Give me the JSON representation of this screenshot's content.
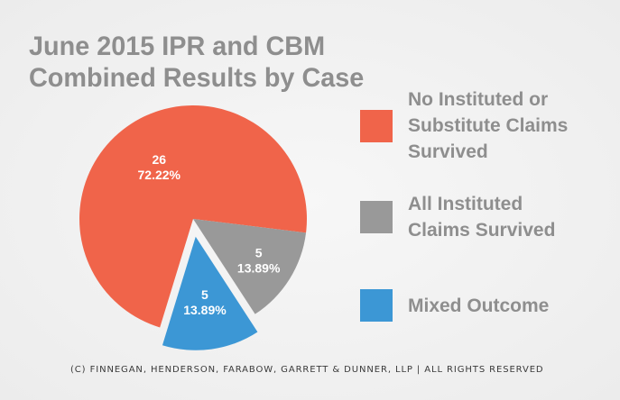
{
  "chart_data": {
    "type": "pie",
    "title": [
      "June 2015 IPR and CBM",
      "Combined Results by Case"
    ],
    "slices": [
      {
        "label": "No Instituted or Substitute Claims Survived",
        "label_lines": [
          "No Instituted or",
          "Substitute Claims",
          "Survived"
        ],
        "value": 26,
        "percent": "72.22%",
        "color": "#f0644a",
        "exploded": false
      },
      {
        "label": "All Instituted Claims Survived",
        "label_lines": [
          "All Instituted",
          "Claims Survived"
        ],
        "value": 5,
        "percent": "13.89%",
        "color": "#999999",
        "exploded": false
      },
      {
        "label": "Mixed Outcome",
        "label_lines": [
          "Mixed Outcome"
        ],
        "value": 5,
        "percent": "13.89%",
        "color": "#3c97d5",
        "exploded": true
      }
    ],
    "legend_position": "right"
  },
  "footer": "(C) FINNEGAN, HENDERSON, FARABOW, GARRETT & DUNNER, LLP | ALL RIGHTS RESERVED"
}
